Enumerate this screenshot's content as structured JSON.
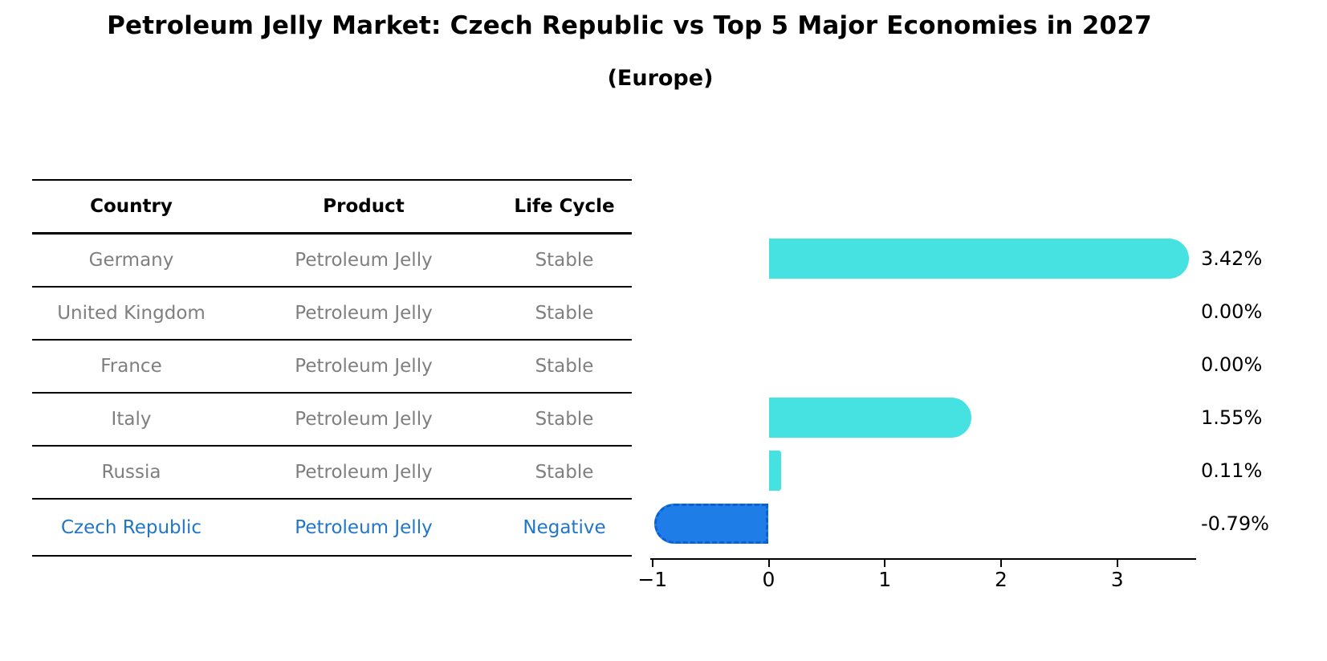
{
  "title": "Petroleum Jelly Market: Czech Republic vs Top 5 Major Economies in 2027",
  "subtitle": "(Europe)",
  "table": {
    "columns": [
      "Country",
      "Product",
      "Life Cycle"
    ],
    "rows": [
      {
        "country": "Germany",
        "product": "Petroleum Jelly",
        "life_cycle": "Stable",
        "highlight": false
      },
      {
        "country": "United Kingdom",
        "product": "Petroleum Jelly",
        "life_cycle": "Stable",
        "highlight": false
      },
      {
        "country": "France",
        "product": "Petroleum Jelly",
        "life_cycle": "Stable",
        "highlight": false
      },
      {
        "country": "Italy",
        "product": "Petroleum Jelly",
        "life_cycle": "Stable",
        "highlight": false
      },
      {
        "country": "Russia",
        "product": "Petroleum Jelly",
        "life_cycle": "Stable",
        "highlight": false
      },
      {
        "country": "Czech Republic",
        "product": "Petroleum Jelly",
        "life_cycle": "Negative",
        "highlight": true
      }
    ]
  },
  "chart_data": {
    "type": "bar",
    "orientation": "horizontal",
    "title": "Petroleum Jelly Market: Czech Republic vs Top 5 Major Economies in 2027",
    "subtitle": "(Europe)",
    "categories": [
      "Germany",
      "United Kingdom",
      "France",
      "Italy",
      "Russia",
      "Czech Republic"
    ],
    "values": [
      3.42,
      0.0,
      0.0,
      1.55,
      0.11,
      -0.79
    ],
    "value_labels": [
      "3.42%",
      "0.00%",
      "0.00%",
      "1.55%",
      "0.11%",
      "-0.79%"
    ],
    "xlabel": "",
    "ylabel": "",
    "xlim": [
      -1.15,
      3.68
    ],
    "xticks": [
      -1,
      0,
      1,
      2,
      3
    ],
    "xtick_labels": [
      "−1",
      "0",
      "1",
      "2",
      "3"
    ],
    "grid": false,
    "legend": "none",
    "colors": {
      "bar_positive": "#46e2e2",
      "bar_highlight": "#1e7de6",
      "bar_highlight_border": "#0d5fd6",
      "highlight_text": "#2176c9",
      "table_text": "#7f7f7f",
      "axis_text": "#000000"
    }
  }
}
